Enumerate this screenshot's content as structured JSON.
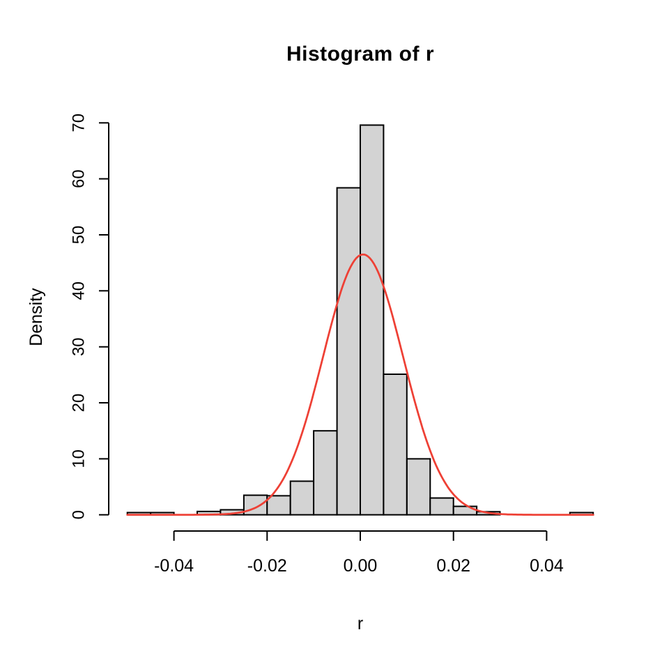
{
  "page": {
    "background": "#FFFFFF"
  },
  "chart_data": {
    "type": "bar",
    "subtype": "histogram-with-normal-density-curve",
    "title": "Histogram of r",
    "xlabel": "r",
    "ylabel": "Density",
    "grid": false,
    "legend": null,
    "xlim": [
      -0.054,
      0.054
    ],
    "ylim": [
      -2.9,
      72.9
    ],
    "x_ticks": {
      "values": [
        -0.04,
        -0.02,
        0.0,
        0.02,
        0.04
      ],
      "labels": [
        "-0.04",
        "-0.02",
        "0.00",
        "0.02",
        "0.04"
      ]
    },
    "y_ticks": {
      "values": [
        0,
        10,
        20,
        30,
        40,
        50,
        60,
        70
      ],
      "labels": [
        "0",
        "10",
        "20",
        "30",
        "40",
        "50",
        "60",
        "70"
      ]
    },
    "bins": {
      "start": -0.05,
      "width": 0.005,
      "densities": [
        0.4,
        0.4,
        0,
        0.6,
        0.9,
        3.5,
        3.4,
        6.0,
        15.0,
        58.4,
        69.6,
        25.1,
        10.0,
        3.0,
        1.5,
        0.55,
        0,
        0,
        0,
        0.4
      ]
    },
    "curve": {
      "shape": "normal-density",
      "mean": 0.0006,
      "sd": 0.0086,
      "peak": 46.5,
      "x_from": -0.05,
      "x_to": 0.05
    },
    "colors": {
      "bar_fill": "#D3D3D3",
      "bar_stroke": "#000000",
      "curve": "#EE4035",
      "axis": "#000000",
      "text": "#000000"
    }
  }
}
